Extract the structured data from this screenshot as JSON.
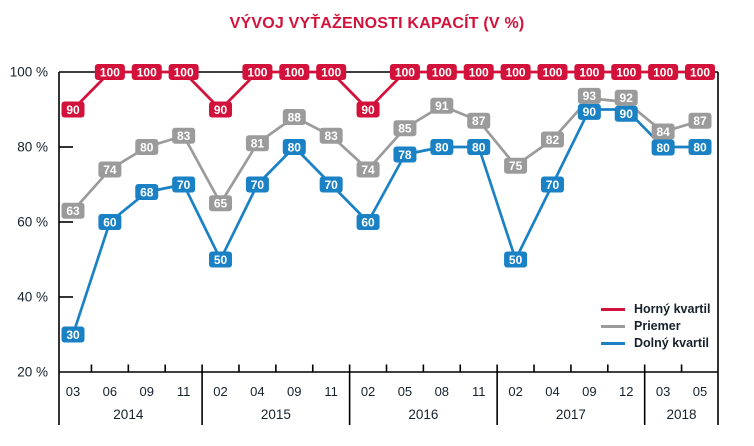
{
  "colors": {
    "red": "#d2123a",
    "gray": "#9b9b9b",
    "blue": "#1a81c5",
    "axis": "#000000",
    "text": "#16212c",
    "background": "#ffffff",
    "point_label_text": "#ffffff"
  },
  "chart_data": {
    "type": "line",
    "title": "VÝVOJ VYŤAŽENOSTI KAPACÍT (V %)",
    "xlabel": "",
    "ylabel": "",
    "ylim": [
      20,
      100
    ],
    "y_tick_values": [
      100,
      80,
      60,
      40,
      20
    ],
    "y_tick_labels": [
      "100 %",
      "80 %",
      "60 %",
      "40 %",
      "20 %"
    ],
    "grid": false,
    "point_labels_shown": true,
    "legend_position": "inside-bottom-right",
    "groups": [
      {
        "year": "2014",
        "months": [
          "03",
          "06",
          "09",
          "11"
        ]
      },
      {
        "year": "2015",
        "months": [
          "02",
          "04",
          "09",
          "11"
        ]
      },
      {
        "year": "2016",
        "months": [
          "02",
          "05",
          "08",
          "11"
        ]
      },
      {
        "year": "2017",
        "months": [
          "02",
          "04",
          "09",
          "12"
        ]
      },
      {
        "year": "2018",
        "months": [
          "03",
          "05"
        ]
      }
    ],
    "series": [
      {
        "name": "Horný kvartil",
        "color": "#d2123a",
        "values": [
          90,
          100,
          100,
          100,
          90,
          100,
          100,
          100,
          90,
          100,
          100,
          100,
          100,
          100,
          100,
          100,
          100,
          100
        ]
      },
      {
        "name": "Priemer",
        "color": "#9b9b9b",
        "values": [
          63,
          74,
          80,
          83,
          65,
          81,
          88,
          83,
          74,
          85,
          91,
          87,
          75,
          82,
          93,
          92,
          84,
          87
        ]
      },
      {
        "name": "Dolný kvartil",
        "color": "#1a81c5",
        "values": [
          30,
          60,
          68,
          70,
          50,
          70,
          80,
          70,
          60,
          78,
          80,
          80,
          50,
          70,
          90,
          90,
          80,
          80
        ]
      }
    ]
  }
}
